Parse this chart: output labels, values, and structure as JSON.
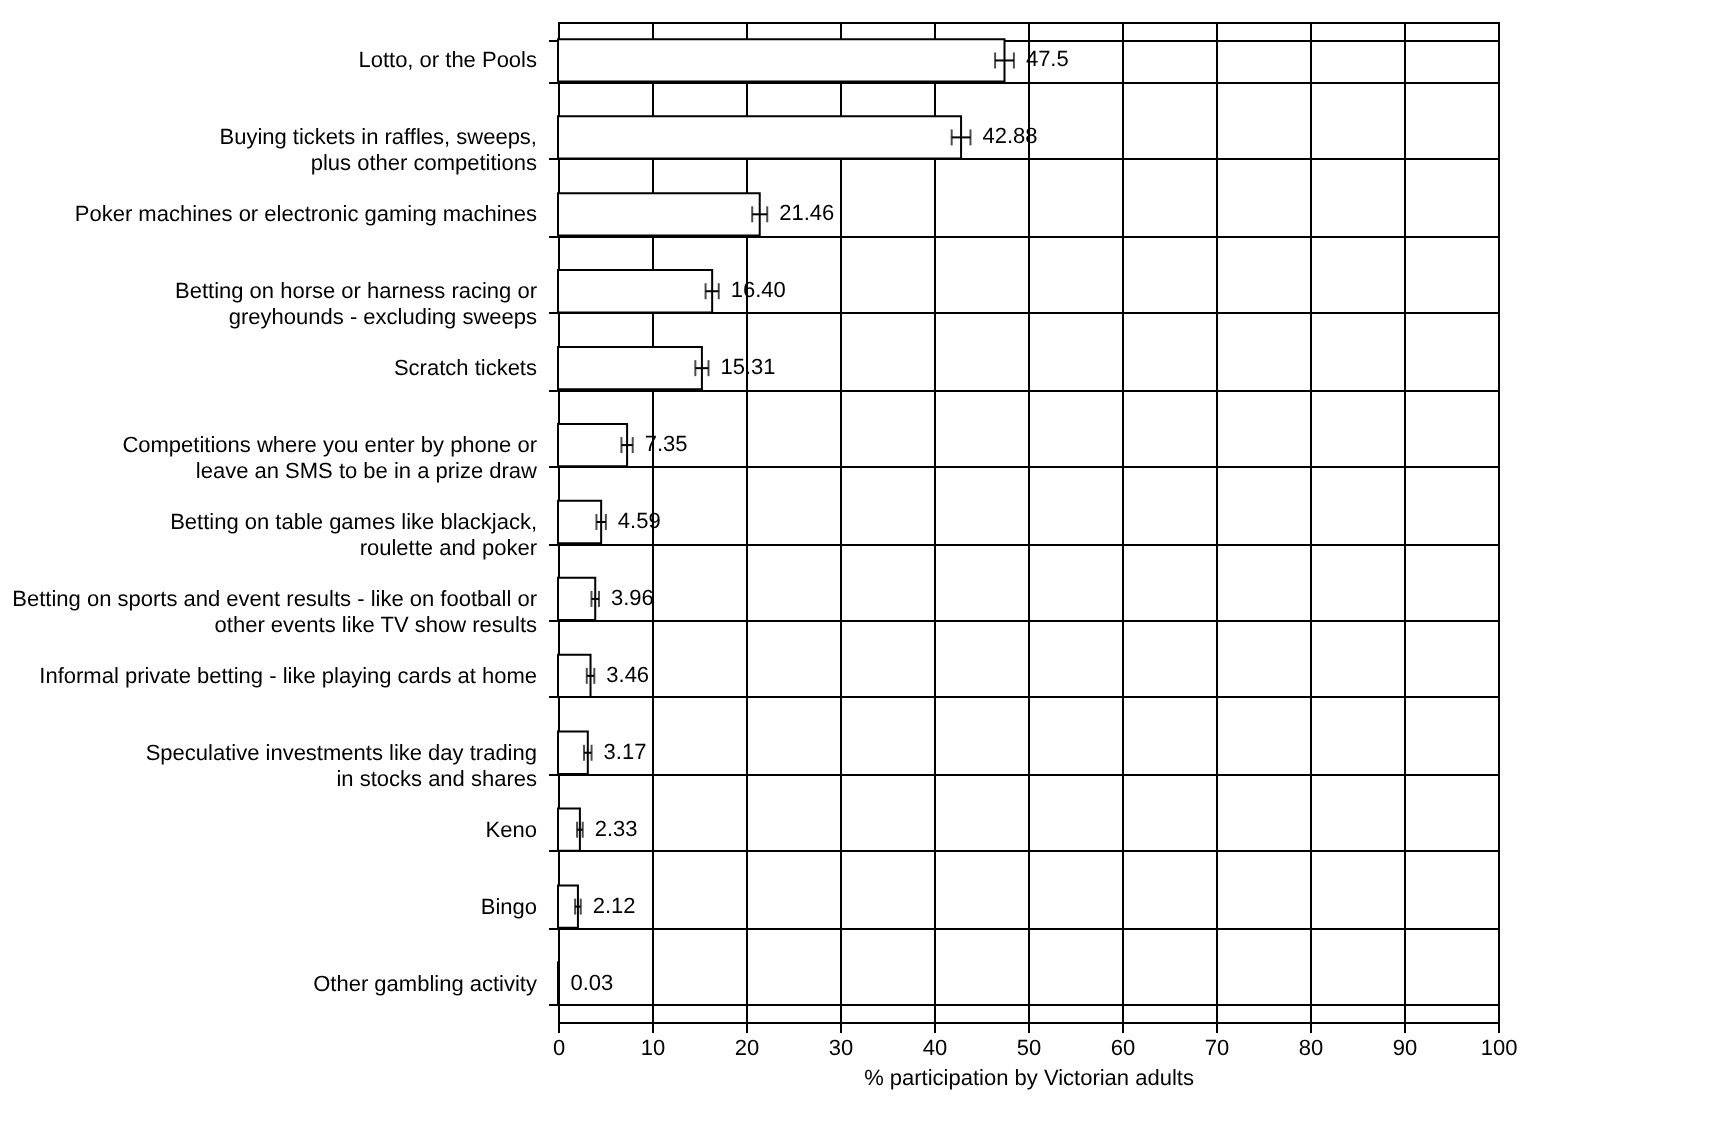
{
  "chart_data": {
    "type": "bar",
    "orientation": "horizontal",
    "categories": [
      "Lotto, or the Pools",
      "Buying tickets in raffles, sweeps,\nplus other competitions",
      "Poker machines or electronic gaming machines",
      "Betting on horse or harness racing or\ngreyhounds - excluding sweeps",
      "Scratch tickets",
      "Competitions where you enter by phone or\nleave an SMS to be in a prize draw",
      "Betting on table games like blackjack,\nroulette and poker",
      "Betting on sports and event results - like on football or\nother events like TV show results",
      "Informal private betting - like playing cards at home",
      "Speculative investments like day trading\nin stocks and shares",
      "Keno",
      "Bingo",
      "Other gambling activity"
    ],
    "values": [
      47.5,
      42.88,
      21.46,
      16.4,
      15.31,
      7.35,
      4.59,
      3.96,
      3.46,
      3.17,
      2.33,
      2.12,
      0.03
    ],
    "value_labels": [
      "47.5",
      "42.88",
      "21.46",
      "16.40",
      "15.31",
      "7.35",
      "4.59",
      "3.96",
      "3.46",
      "3.17",
      "2.33",
      "2.12",
      "0.03"
    ],
    "errors": [
      1.0,
      1.0,
      0.8,
      0.7,
      0.7,
      0.6,
      0.5,
      0.4,
      0.4,
      0.4,
      0.3,
      0.3,
      0.02
    ],
    "color": "#ffffff",
    "xlim": [
      0,
      100
    ],
    "xticks": [
      0,
      10,
      20,
      30,
      40,
      50,
      60,
      70,
      80,
      90,
      100
    ],
    "xlabel": "% participation by Victorian adults",
    "grid": true
  }
}
